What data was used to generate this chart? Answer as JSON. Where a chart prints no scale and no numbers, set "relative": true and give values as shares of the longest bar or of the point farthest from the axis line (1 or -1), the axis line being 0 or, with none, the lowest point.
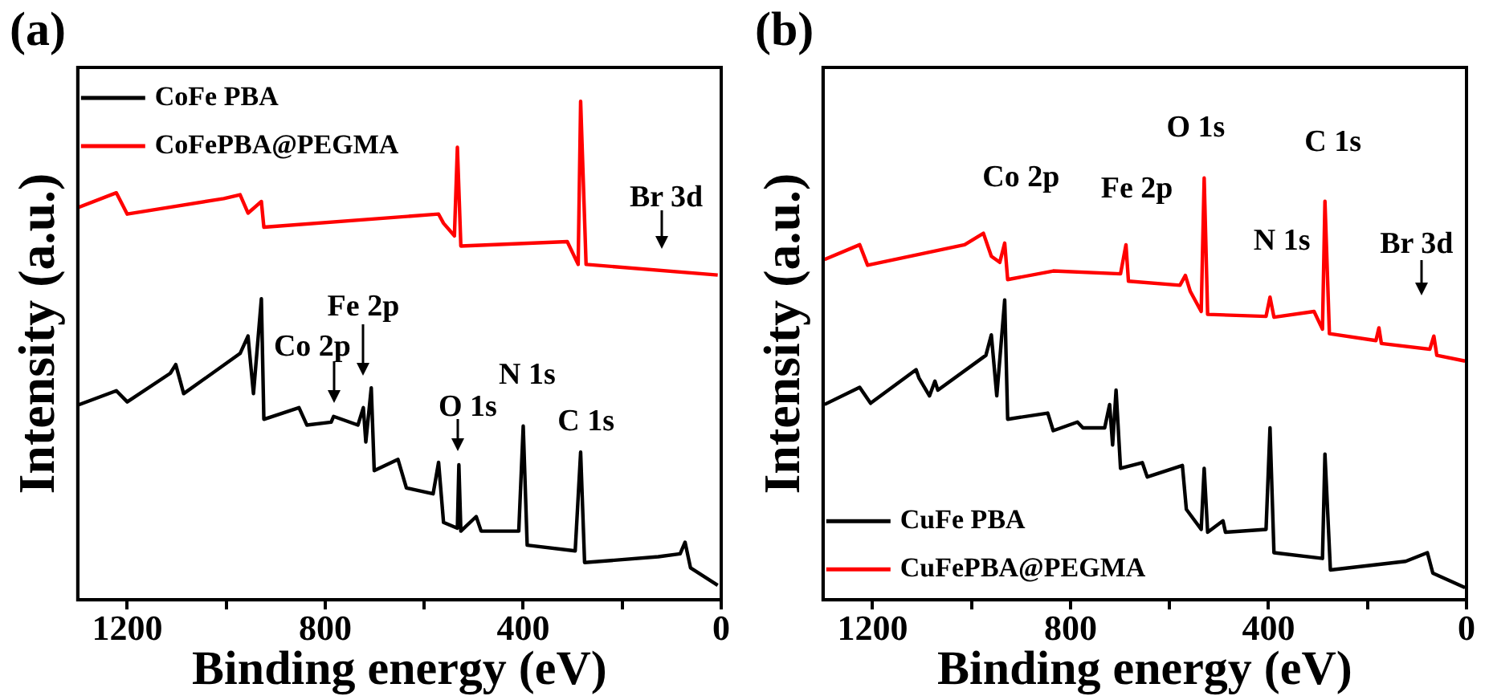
{
  "chart_data": [
    {
      "type": "line",
      "title": "(a)",
      "xlabel": "Binding energy (eV)",
      "ylabel": "Intensity (a.u.)",
      "relative": true,
      "xlim": [
        1300,
        0
      ],
      "xticks": [
        1200,
        {
          "value": 1000,
          "label": null
        },
        800,
        {
          "value": 600,
          "label": null
        },
        400,
        {
          "value": 200,
          "label": null
        },
        0
      ],
      "grid": false,
      "legend": "top left",
      "marker": "none",
      "line_style": "solid",
      "annotations": [
        "Br 3d",
        "Co 2p",
        "Fe 2p",
        "O 1s",
        "N 1s",
        "C 1s"
      ],
      "series": [
        {
          "name": "CoFe PBA",
          "color": "#000000",
          "x": [
            1298,
            1222,
            1200,
            1113,
            1102,
            1086,
            972,
            956,
            945,
            929,
            924,
            853,
            837,
            788,
            783,
            734,
            723,
            718,
            707,
            701,
            653,
            636,
            582,
            571,
            561,
            533,
            530,
            526,
            495,
            485,
            409,
            400,
            392,
            295,
            284,
            276,
            127,
            83,
            73,
            62,
            7
          ],
          "values": [
            0.373,
            0.402,
            0.379,
            0.438,
            0.456,
            0.396,
            0.479,
            0.515,
            0.396,
            0.592,
            0.343,
            0.367,
            0.331,
            0.337,
            0.349,
            0.331,
            0.367,
            0.296,
            0.408,
            0.237,
            0.26,
            0.201,
            0.189,
            0.254,
            0.13,
            0.118,
            0.249,
            0.112,
            0.142,
            0.112,
            0.112,
            0.329,
            0.083,
            0.071,
            0.275,
            0.047,
            0.059,
            0.065,
            0.089,
            0.036,
            0
          ]
        },
        {
          "name": "CoFePBA@PEGMA",
          "color": "#ff0000",
          "x": [
            1298,
            1222,
            1200,
            1005,
            972,
            956,
            929,
            924,
            571,
            561,
            539,
            533,
            526,
            311,
            289,
            284,
            273,
            7
          ],
          "values": [
            0.781,
            0.811,
            0.767,
            0.799,
            0.807,
            0.769,
            0.793,
            0.74,
            0.767,
            0.748,
            0.722,
            0.905,
            0.701,
            0.71,
            0.663,
            1,
            0.663,
            0.641
          ]
        }
      ]
    },
    {
      "type": "line",
      "title": "(b)",
      "xlabel": "Binding energy (eV)",
      "ylabel": "Intensity (a.u.)",
      "relative": true,
      "xlim": [
        1300,
        0
      ],
      "xticks": [
        1200,
        {
          "value": 1000,
          "label": null
        },
        800,
        {
          "value": 600,
          "label": null
        },
        400,
        {
          "value": 200,
          "label": null
        },
        0
      ],
      "grid": false,
      "legend": "bottom left",
      "marker": "none",
      "line_style": "solid",
      "annotations": [
        "Co 2p",
        "Fe 2p",
        "O 1s",
        "N 1s",
        "C 1s",
        "Br 3d"
      ],
      "series": [
        {
          "name": "CuFe PBA",
          "color": "#000000",
          "x": [
            1297,
            1226,
            1204,
            1112,
            1106,
            1085,
            1074,
            1068,
            971,
            960,
            949,
            933,
            927,
            846,
            835,
            786,
            775,
            731,
            721,
            715,
            708,
            699,
            655,
            645,
            574,
            566,
            536,
            530,
            523,
            492,
            487,
            405,
            397,
            389,
            291,
            286,
            275,
            123,
            79,
            68,
            3
          ],
          "values": [
            0.447,
            0.489,
            0.45,
            0.532,
            0.511,
            0.468,
            0.504,
            0.482,
            0.567,
            0.617,
            0.468,
            0.702,
            0.411,
            0.426,
            0.383,
            0.404,
            0.39,
            0.39,
            0.447,
            0.348,
            0.482,
            0.291,
            0.305,
            0.27,
            0.298,
            0.191,
            0.142,
            0.291,
            0.135,
            0.163,
            0.135,
            0.142,
            0.39,
            0.085,
            0.071,
            0.326,
            0.043,
            0.064,
            0.085,
            0.035,
            0
          ]
        },
        {
          "name": "CuFePBA@PEGMA",
          "color": "#ff0000",
          "x": [
            1297,
            1226,
            1210,
            1014,
            976,
            960,
            943,
            933,
            927,
            835,
            699,
            688,
            683,
            579,
            568,
            558,
            536,
            530,
            523,
            405,
            397,
            389,
            308,
            291,
            286,
            277,
            183,
            177,
            172,
            74,
            66,
            60,
            3
          ],
          "values": [
            0.801,
            0.837,
            0.787,
            0.837,
            0.865,
            0.809,
            0.794,
            0.841,
            0.752,
            0.773,
            0.766,
            0.837,
            0.748,
            0.738,
            0.762,
            0.723,
            0.674,
            1,
            0.667,
            0.662,
            0.709,
            0.66,
            0.674,
            0.631,
            0.943,
            0.62,
            0.603,
            0.634,
            0.596,
            0.582,
            0.614,
            0.567,
            0.553
          ]
        }
      ]
    }
  ]
}
